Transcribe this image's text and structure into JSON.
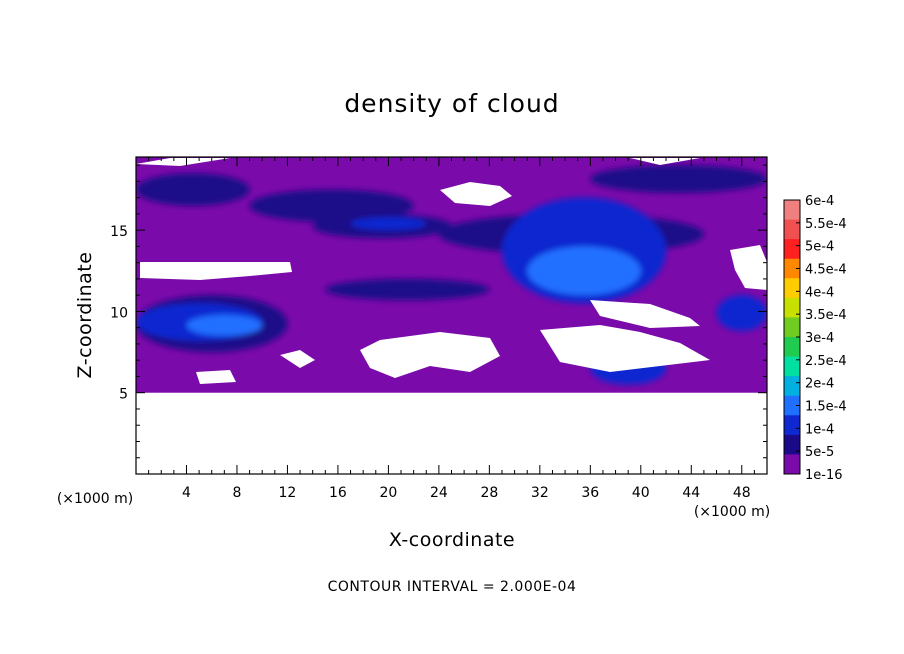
{
  "chart_data": {
    "type": "heatmap",
    "title": "density of cloud",
    "xlabel": "X-coordinate",
    "ylabel": "Z-coordinate",
    "x_unit": "(×1000 m)",
    "y_unit": "(×1000 m)",
    "xlim": [
      0,
      50
    ],
    "ylim": [
      0,
      19.5
    ],
    "x_ticks": [
      4,
      8,
      12,
      16,
      20,
      24,
      28,
      32,
      36,
      40,
      44,
      48
    ],
    "y_ticks": [
      5,
      10,
      15
    ],
    "contour_note": "CONTOUR INTERVAL = 2.000E-04",
    "colorbar": {
      "labels": [
        "6e-4",
        "5.5e-4",
        "5e-4",
        "4.5e-4",
        "4e-4",
        "3.5e-4",
        "3e-4",
        "2.5e-4",
        "2e-4",
        "1.5e-4",
        "1e-4",
        "5e-5",
        "1e-16"
      ],
      "colors": [
        "#f08080",
        "#f05050",
        "#ff2020",
        "#ff8800",
        "#ffcc00",
        "#c8e000",
        "#70cc20",
        "#20cc50",
        "#00e0a0",
        "#00b0e0",
        "#2070ff",
        "#1028d0",
        "#1a0a88",
        "#7a0aaa"
      ]
    },
    "colors": {
      "background_level": "#7a0aaa",
      "medium_level": "#1a0a88",
      "low_blue": "#1028d0",
      "mid_blue": "#2070ff",
      "high_blue": "#00b0e0"
    },
    "regions": [
      {
        "level": "5e-5",
        "x": [
          0,
          9
        ],
        "z": [
          16.5,
          18.5
        ]
      },
      {
        "level": "5e-5",
        "x": [
          9,
          22
        ],
        "z": [
          15.5,
          17.5
        ]
      },
      {
        "level": "5e-5",
        "x": [
          14,
          25
        ],
        "z": [
          14.5,
          16
        ]
      },
      {
        "level": "1e-4",
        "x": [
          17,
          23
        ],
        "z": [
          15,
          15.8
        ]
      },
      {
        "level": "5e-5",
        "x": [
          36,
          50
        ],
        "z": [
          17.3,
          19
        ]
      },
      {
        "level": "5e-5",
        "x": [
          24,
          45
        ],
        "z": [
          13.5,
          16
        ]
      },
      {
        "level": "1e-4",
        "x": [
          29,
          42
        ],
        "z": [
          10.5,
          17
        ]
      },
      {
        "level": "1.5e-4",
        "x": [
          31,
          40
        ],
        "z": [
          11,
          14
        ]
      },
      {
        "level": "5e-5",
        "x": [
          0,
          12
        ],
        "z": [
          7.5,
          11
        ]
      },
      {
        "level": "1e-4",
        "x": [
          0,
          10
        ],
        "z": [
          8.2,
          10.5
        ]
      },
      {
        "level": "1.5e-4",
        "x": [
          4,
          10
        ],
        "z": [
          8.5,
          9.8
        ]
      },
      {
        "level": "1e-4",
        "x": [
          36,
          42
        ],
        "z": [
          5.5,
          7.5
        ]
      },
      {
        "level": "1e-4",
        "x": [
          46,
          50
        ],
        "z": [
          8.8,
          11
        ]
      },
      {
        "level": "5e-5",
        "x": [
          15,
          28
        ],
        "z": [
          10.7,
          12
        ]
      }
    ],
    "empty_regions_note": "below z=5 no cloud (white)"
  }
}
